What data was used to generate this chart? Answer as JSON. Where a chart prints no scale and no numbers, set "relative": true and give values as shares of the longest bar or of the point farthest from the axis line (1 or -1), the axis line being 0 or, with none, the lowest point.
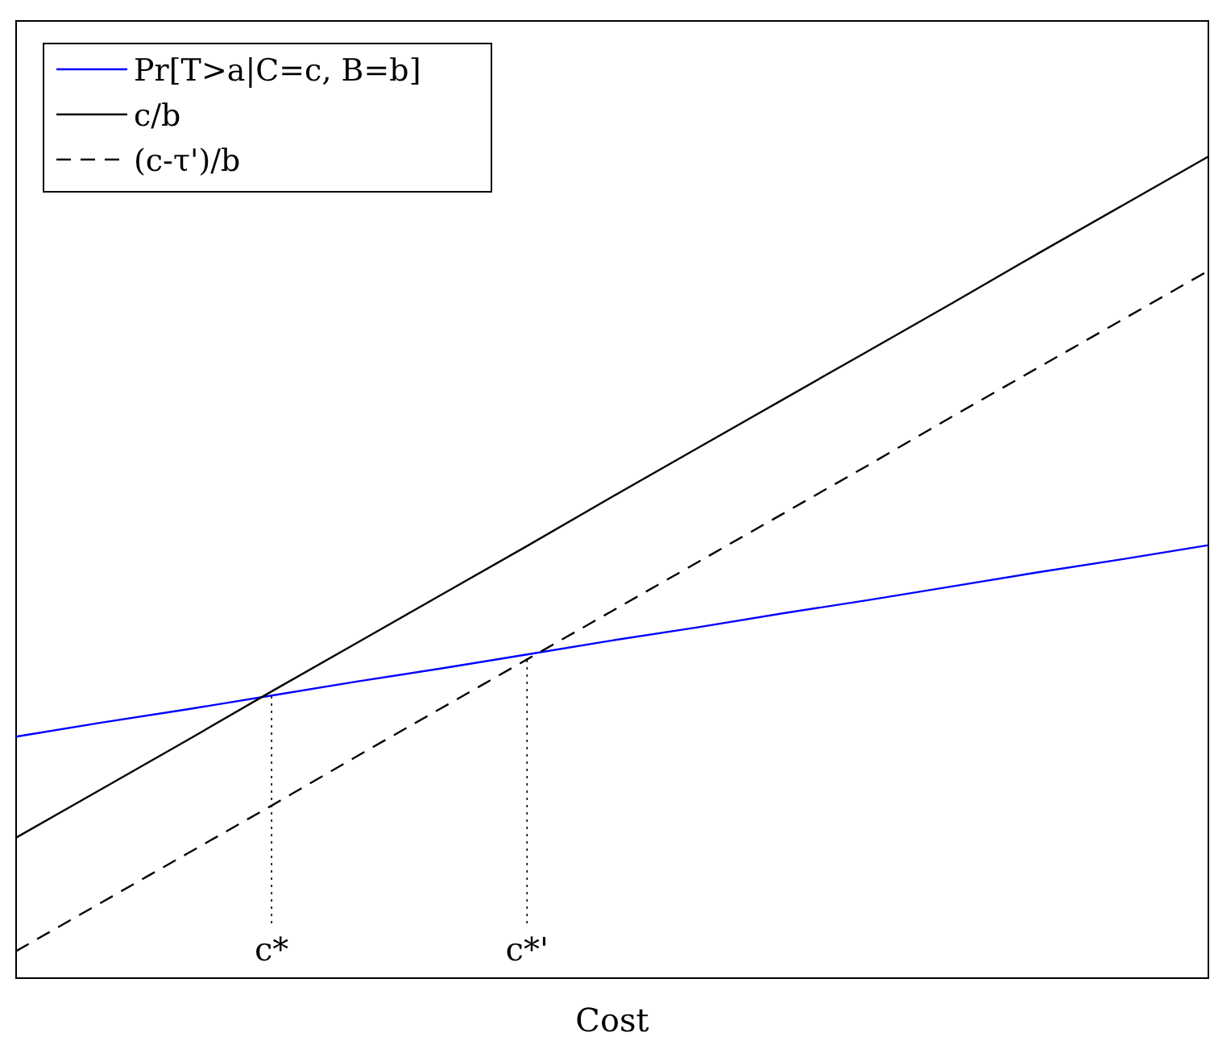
{
  "chart_data": {
    "type": "line",
    "xlabel": "Cost",
    "relative": true,
    "legend": "top left",
    "categories": [
      null,
      null,
      null,
      "c*",
      null,
      null,
      "c*'",
      null,
      null,
      null,
      null,
      null,
      null,
      null,
      null
    ],
    "series": [
      {
        "name": "Pr[T>a|C=c, B=b]",
        "color": "#0000ff",
        "line_style": "solid",
        "values": [
          0.294,
          0.311,
          0.327,
          0.344,
          0.361,
          0.377,
          0.394,
          0.411,
          0.427,
          0.444,
          0.46,
          0.477,
          0.494,
          0.51,
          0.527
        ]
      },
      {
        "name": "c/b",
        "color": "#000000",
        "line_style": "solid",
        "values": [
          0.171,
          0.23,
          0.289,
          0.349,
          0.408,
          0.467,
          0.526,
          0.586,
          0.645,
          0.704,
          0.763,
          0.822,
          0.882,
          0.941,
          1
        ]
      },
      {
        "name": "(c-τ')/b",
        "color": "#000000",
        "line_style": "dashed",
        "values": [
          0.033,
          0.092,
          0.151,
          0.21,
          0.27,
          0.329,
          0.388,
          0.447,
          0.506,
          0.565,
          0.624,
          0.684,
          0.743,
          0.802,
          0.861
        ]
      }
    ],
    "ref_lines": [
      {
        "axis": "x",
        "value": "c*",
        "line_style": "dotted",
        "color": "#000000"
      },
      {
        "axis": "x",
        "value": "c*'",
        "line_style": "dotted",
        "color": "#000000"
      }
    ]
  }
}
